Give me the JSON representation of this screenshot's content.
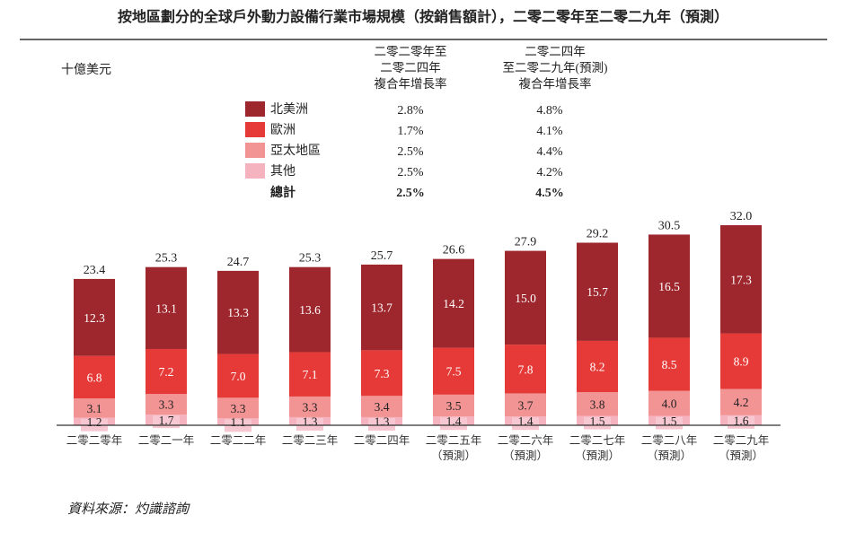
{
  "chart_data": {
    "type": "bar",
    "stacked": true,
    "title": "按地區劃分的全球戶外動力設備行業市場規模（按銷售額計），二零二零年至二零二九年（預測）",
    "ylabel": "十億美元",
    "categories": [
      [
        "二零二零年"
      ],
      [
        "二零二一年"
      ],
      [
        "二零二二年"
      ],
      [
        "二零二三年"
      ],
      [
        "二零二四年"
      ],
      [
        "二零二五年",
        "（預測）"
      ],
      [
        "二零二六年",
        "（預測）"
      ],
      [
        "二零二七年",
        "（預測）"
      ],
      [
        "二零二八年",
        "（預測）"
      ],
      [
        "二零二九年",
        "（預測）"
      ]
    ],
    "series": [
      {
        "name": "其他",
        "color": "#f5b3c0",
        "values": [
          1.2,
          1.7,
          1.1,
          1.3,
          1.3,
          1.4,
          1.4,
          1.5,
          1.5,
          1.6
        ]
      },
      {
        "name": "亞太地區",
        "color": "#f29494",
        "values": [
          3.1,
          3.3,
          3.3,
          3.3,
          3.4,
          3.5,
          3.7,
          3.8,
          4.0,
          4.2
        ]
      },
      {
        "name": "歐洲",
        "color": "#e53a37",
        "values": [
          6.8,
          7.2,
          7.0,
          7.1,
          7.3,
          7.5,
          7.8,
          8.2,
          8.5,
          8.9
        ]
      },
      {
        "name": "北美洲",
        "color": "#9e272d",
        "values": [
          12.3,
          13.1,
          13.3,
          13.6,
          13.7,
          14.2,
          15.0,
          15.7,
          16.5,
          17.3
        ]
      }
    ],
    "totals": [
      "23.4",
      "25.3",
      "24.7",
      "25.3",
      "25.7",
      "26.6",
      "27.9",
      "29.2",
      "30.5",
      "32.0"
    ],
    "ylim": [
      0,
      32.0
    ],
    "grid": false,
    "legend": {
      "placement": "top",
      "cagr_headers": [
        [
          "二零二零年至",
          "二零二四年",
          "複合年增長率"
        ],
        [
          "二零二四年",
          "至二零二九年(預測)",
          "複合年增長率"
        ]
      ],
      "rows": [
        {
          "label": "北美洲",
          "color": "#9e272d",
          "cagr1": "2.8%",
          "cagr2": "4.8%"
        },
        {
          "label": "歐洲",
          "color": "#e53a37",
          "cagr1": "1.7%",
          "cagr2": "4.1%"
        },
        {
          "label": "亞太地區",
          "color": "#f29494",
          "cagr1": "2.5%",
          "cagr2": "4.4%"
        },
        {
          "label": "其他",
          "color": "#f5b3c0",
          "cagr1": "2.5%",
          "cagr2": "4.2%"
        }
      ],
      "total_row": {
        "label": "總計",
        "cagr1": "2.5%",
        "cagr2": "4.5%"
      }
    },
    "source": "資料來源：灼識諮詢"
  }
}
